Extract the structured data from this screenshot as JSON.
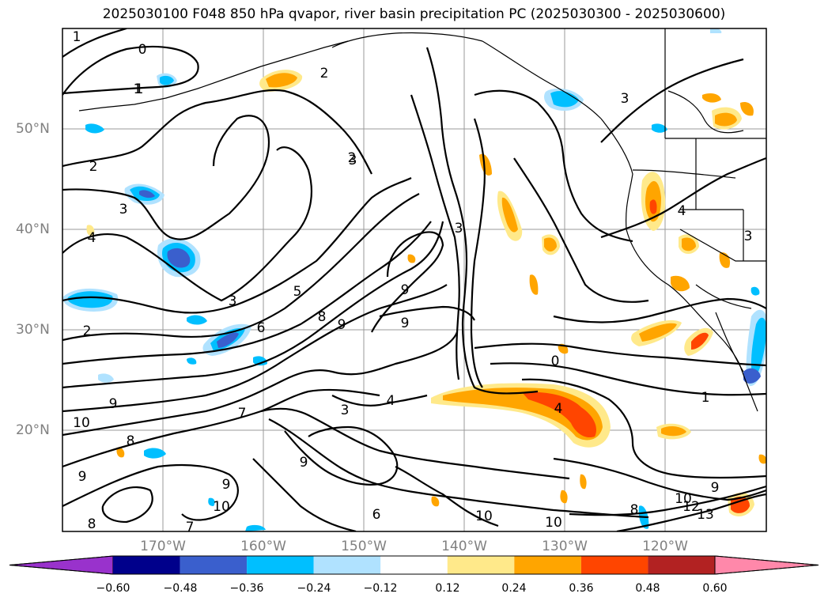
{
  "title": "2025030100 F048 850 hPa qvapor, river basin precipitation PC (2025030300 - 2025030600)",
  "map": {
    "lat_labels": [
      "50°N",
      "40°N",
      "30°N",
      "20°N"
    ],
    "lon_labels": [
      "170°W",
      "160°W",
      "150°W",
      "140°W",
      "130°W",
      "120°W"
    ],
    "contour_labels": [
      "1",
      "0",
      "1",
      "2",
      "2",
      "3",
      "1",
      "2",
      "3",
      "4",
      "3",
      "2",
      "5",
      "6",
      "8",
      "9",
      "9",
      "9",
      "7",
      "3",
      "4",
      "9",
      "10",
      "8",
      "9",
      "9",
      "8",
      "10",
      "7",
      "6",
      "9",
      "10",
      "10",
      "0",
      "4",
      "1",
      "8",
      "10",
      "12",
      "13",
      "9",
      "3",
      "4",
      "3",
      "3"
    ]
  },
  "colorbar": {
    "tick_labels": [
      "−0.60",
      "−0.48",
      "−0.36",
      "−0.24",
      "−0.12",
      "0.12",
      "0.24",
      "0.36",
      "0.48",
      "0.60"
    ],
    "colors": [
      "#9932CC",
      "#00008B",
      "#3A5FCD",
      "#00BFFF",
      "#B0E2FF",
      "#FFFFFF",
      "#FFE98A",
      "#FFA500",
      "#FF4500",
      "#B22222",
      "#FF88AA"
    ]
  }
}
